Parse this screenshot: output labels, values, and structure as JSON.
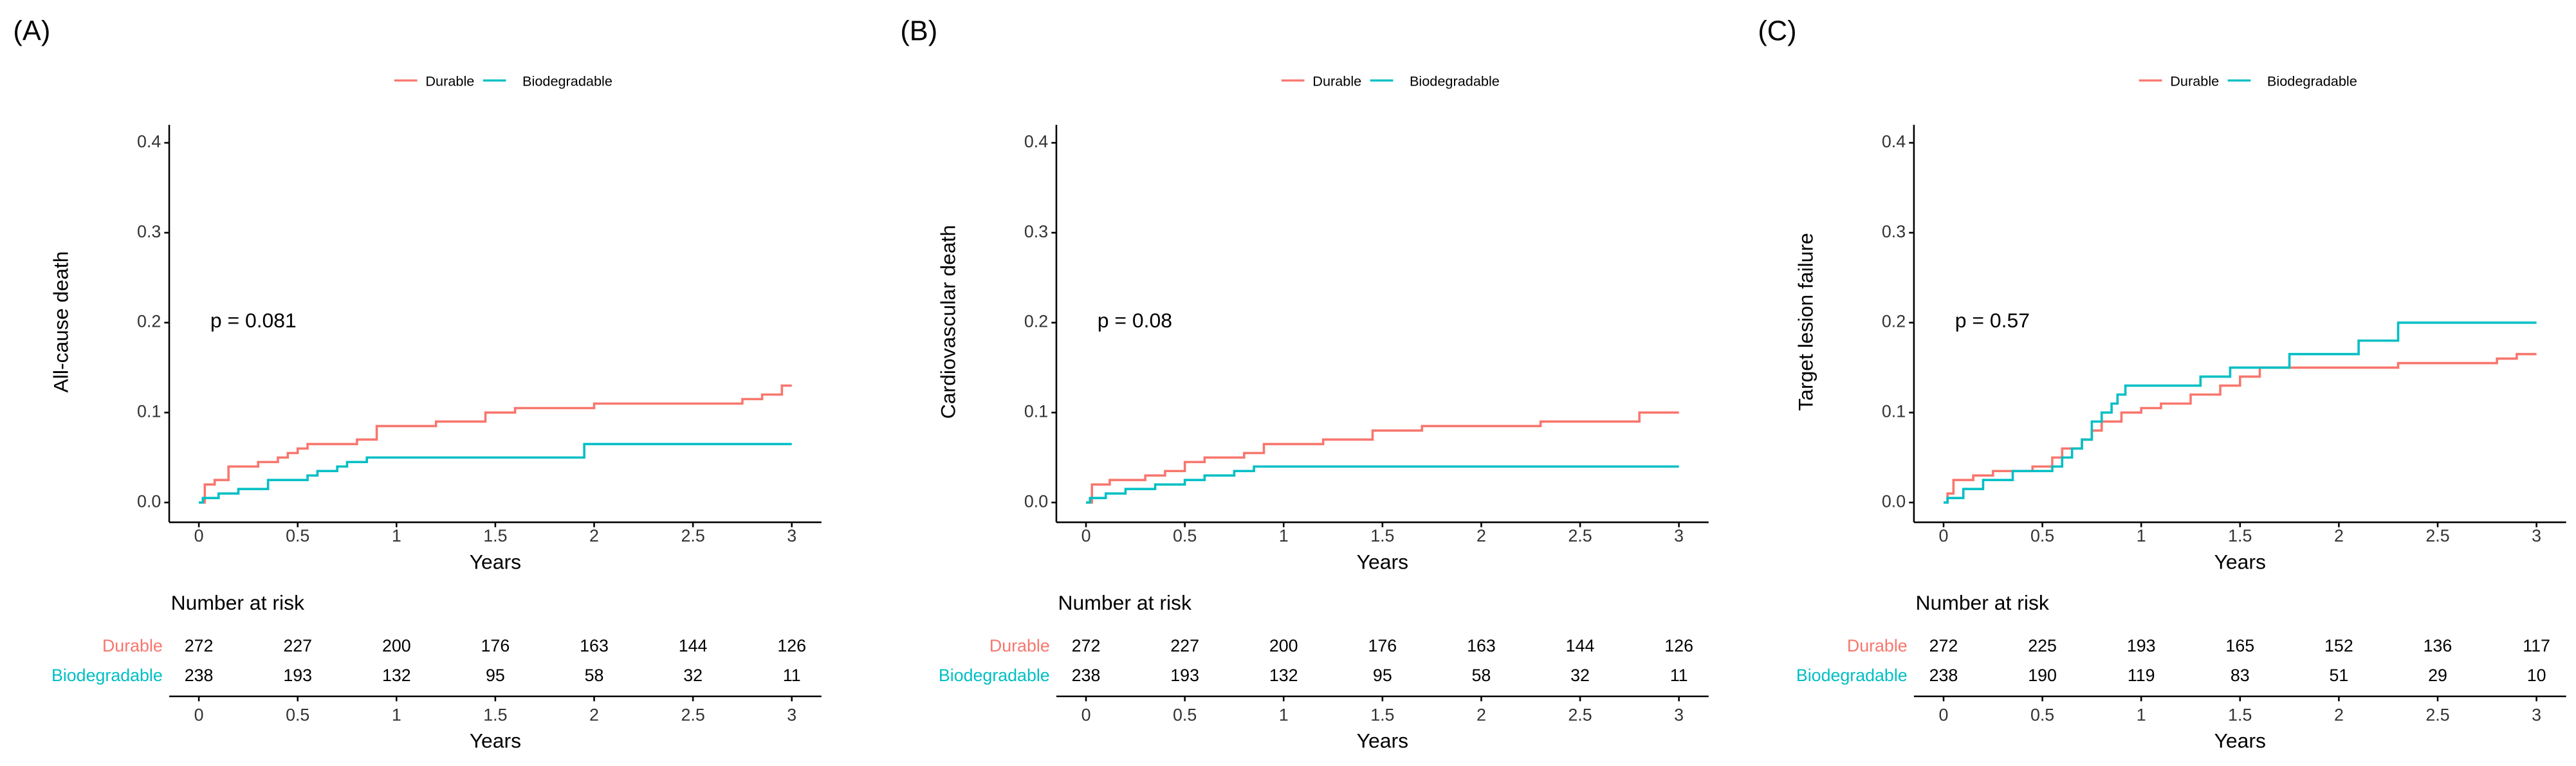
{
  "chart_data": [
    {
      "type": "step",
      "panel_label": "(A)",
      "y_label": "All-cause death",
      "x_label": "Years",
      "annotation": "p = 0.081",
      "xlim": [
        -0.15,
        3.15
      ],
      "ylim": [
        -0.022,
        0.42
      ],
      "xticks": [
        0,
        0.5,
        1,
        1.5,
        2,
        2.5,
        3
      ],
      "yticks": [
        {
          "value": 0,
          "label": "0.0"
        },
        0.1,
        0.2,
        0.3,
        0.4
      ],
      "series": [
        {
          "name": "Durable",
          "color": "#f8766d",
          "x": [
            0,
            0.03,
            0.08,
            0.15,
            0.3,
            0.4,
            0.45,
            0.5,
            0.55,
            0.8,
            0.9,
            1.2,
            1.45,
            1.6,
            2.0,
            2.75,
            2.85,
            2.95,
            3
          ],
          "values": [
            0,
            0.02,
            0.025,
            0.04,
            0.045,
            0.05,
            0.055,
            0.06,
            0.065,
            0.07,
            0.085,
            0.09,
            0.1,
            0.105,
            0.11,
            0.115,
            0.12,
            0.13,
            0.13
          ]
        },
        {
          "name": "Biodegradable",
          "color": "#00bfc4",
          "x": [
            0,
            0.02,
            0.1,
            0.2,
            0.35,
            0.55,
            0.6,
            0.7,
            0.75,
            0.85,
            1.95,
            3
          ],
          "values": [
            0,
            0.005,
            0.01,
            0.015,
            0.025,
            0.03,
            0.035,
            0.04,
            0.045,
            0.05,
            0.065,
            0.065
          ]
        }
      ],
      "risk_table": {
        "title": "Number at risk",
        "x_label": "Years",
        "xticks": [
          0,
          0.5,
          1,
          1.5,
          2,
          2.5,
          3
        ],
        "rows": [
          {
            "name": "Durable",
            "values": [
              272,
              227,
              200,
              176,
              163,
              144,
              126
            ]
          },
          {
            "name": "Biodegradable",
            "values": [
              238,
              193,
              132,
              95,
              58,
              32,
              11
            ]
          }
        ]
      }
    },
    {
      "type": "step",
      "panel_label": "(B)",
      "y_label": "Cardiovascular death",
      "x_label": "Years",
      "annotation": "p = 0.08",
      "xlim": [
        -0.15,
        3.15
      ],
      "ylim": [
        -0.022,
        0.42
      ],
      "xticks": [
        0,
        0.5,
        1,
        1.5,
        2,
        2.5,
        3
      ],
      "yticks": [
        {
          "value": 0,
          "label": "0.0"
        },
        0.1,
        0.2,
        0.3,
        0.4
      ],
      "series": [
        {
          "name": "Durable",
          "color": "#f8766d",
          "x": [
            0,
            0.03,
            0.12,
            0.3,
            0.4,
            0.5,
            0.6,
            0.8,
            0.9,
            1.2,
            1.45,
            1.7,
            2.3,
            2.8,
            3
          ],
          "values": [
            0,
            0.02,
            0.025,
            0.03,
            0.035,
            0.045,
            0.05,
            0.055,
            0.065,
            0.07,
            0.08,
            0.085,
            0.09,
            0.1,
            0.1
          ]
        },
        {
          "name": "Biodegradable",
          "color": "#00bfc4",
          "x": [
            0,
            0.02,
            0.1,
            0.2,
            0.35,
            0.5,
            0.6,
            0.75,
            0.85,
            3
          ],
          "values": [
            0,
            0.005,
            0.01,
            0.015,
            0.02,
            0.025,
            0.03,
            0.035,
            0.04,
            0.04
          ]
        }
      ],
      "risk_table": {
        "title": "Number at risk",
        "x_label": "Years",
        "xticks": [
          0,
          0.5,
          1,
          1.5,
          2,
          2.5,
          3
        ],
        "rows": [
          {
            "name": "Durable",
            "values": [
              272,
              227,
              200,
              176,
              163,
              144,
              126
            ]
          },
          {
            "name": "Biodegradable",
            "values": [
              238,
              193,
              132,
              95,
              58,
              32,
              11
            ]
          }
        ]
      }
    },
    {
      "type": "step",
      "panel_label": "(C)",
      "y_label": "Target lesion failure",
      "x_label": "Years",
      "annotation": "p = 0.57",
      "xlim": [
        -0.15,
        3.15
      ],
      "ylim": [
        -0.022,
        0.42
      ],
      "xticks": [
        0,
        0.5,
        1,
        1.5,
        2,
        2.5,
        3
      ],
      "yticks": [
        {
          "value": 0,
          "label": "0.0"
        },
        0.1,
        0.2,
        0.3,
        0.4
      ],
      "series": [
        {
          "name": "Durable",
          "color": "#f8766d",
          "x": [
            0,
            0.02,
            0.05,
            0.15,
            0.25,
            0.45,
            0.55,
            0.6,
            0.7,
            0.75,
            0.8,
            0.9,
            1.0,
            1.1,
            1.25,
            1.4,
            1.5,
            1.6,
            2.3,
            2.8,
            2.9,
            3
          ],
          "values": [
            0,
            0.01,
            0.025,
            0.03,
            0.035,
            0.04,
            0.05,
            0.06,
            0.07,
            0.08,
            0.09,
            0.1,
            0.105,
            0.11,
            0.12,
            0.13,
            0.14,
            0.15,
            0.155,
            0.16,
            0.165,
            0.165
          ]
        },
        {
          "name": "Biodegradable",
          "color": "#00bfc4",
          "x": [
            0,
            0.02,
            0.1,
            0.2,
            0.35,
            0.55,
            0.6,
            0.65,
            0.7,
            0.75,
            0.8,
            0.85,
            0.88,
            0.92,
            1.3,
            1.45,
            1.75,
            2.1,
            2.3,
            3
          ],
          "values": [
            0,
            0.005,
            0.015,
            0.025,
            0.035,
            0.04,
            0.05,
            0.06,
            0.07,
            0.09,
            0.1,
            0.11,
            0.12,
            0.13,
            0.14,
            0.15,
            0.165,
            0.18,
            0.2,
            0.2
          ]
        }
      ],
      "risk_table": {
        "title": "Number at risk",
        "x_label": "Years",
        "xticks": [
          0,
          0.5,
          1,
          1.5,
          2,
          2.5,
          3
        ],
        "rows": [
          {
            "name": "Durable",
            "values": [
              272,
              225,
              193,
              165,
              152,
              136,
              117
            ]
          },
          {
            "name": "Biodegradable",
            "values": [
              238,
              190,
              119,
              83,
              51,
              29,
              10
            ]
          }
        ]
      }
    }
  ]
}
